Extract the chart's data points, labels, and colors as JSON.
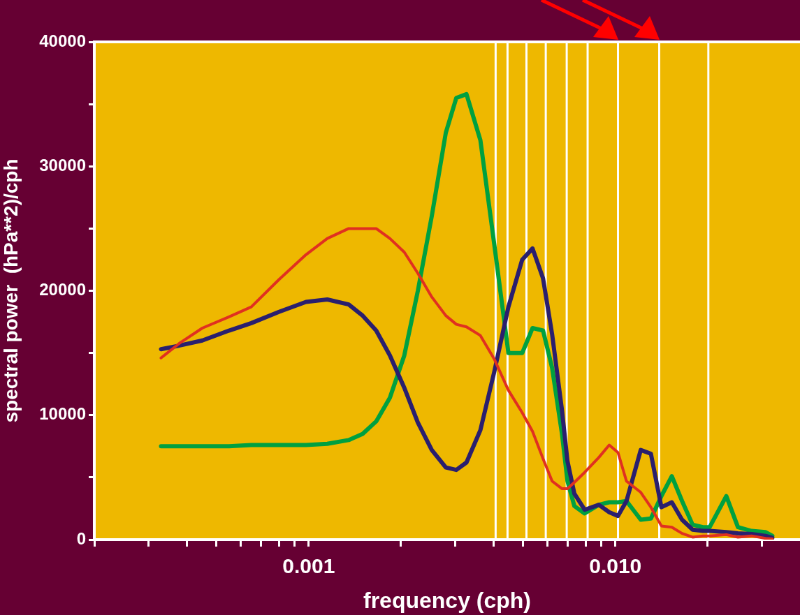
{
  "chart_data": {
    "type": "line",
    "xlabel": "frequency (cph)",
    "ylabel": "spectral power  (hPa**2)/cph",
    "log": "x",
    "x": [
      0.00033,
      0.00038,
      0.00045,
      0.00055,
      0.00065,
      0.0008,
      0.00098,
      0.00115,
      0.00135,
      0.0015,
      0.00166,
      0.00184,
      0.00205,
      0.00227,
      0.00252,
      0.0028,
      0.00303,
      0.00327,
      0.00363,
      0.00403,
      0.00448,
      0.00497,
      0.00537,
      0.00581,
      0.00622,
      0.00669,
      0.00698,
      0.00735,
      0.00794,
      0.00883,
      0.00955,
      0.0102,
      0.01087,
      0.0121,
      0.01306,
      0.01413,
      0.01528,
      0.0165,
      0.01786,
      0.0193,
      0.0203,
      0.023,
      0.0251,
      0.0278,
      0.0309,
      0.0325
    ],
    "series": [
      {
        "color": "#e03020",
        "values": [
          14600,
          15800,
          17000,
          17900,
          18700,
          20900,
          22900,
          24200,
          25000,
          25000,
          25000,
          24200,
          23100,
          21400,
          19500,
          18000,
          17300,
          17100,
          16400,
          14500,
          12000,
          10200,
          8700,
          6500,
          4700,
          4100,
          4100,
          4600,
          5400,
          6600,
          7600,
          7000,
          4700,
          3800,
          2600,
          1100,
          1000,
          500,
          200,
          300,
          300,
          400,
          200,
          300,
          100,
          50
        ]
      },
      {
        "color": "#2a1f6e",
        "values": [
          15300,
          15600,
          16000,
          16800,
          17400,
          18300,
          19100,
          19300,
          18900,
          18000,
          16800,
          14800,
          12200,
          9400,
          7200,
          5800,
          5600,
          6200,
          8800,
          13500,
          18700,
          22500,
          23400,
          21000,
          16500,
          10500,
          6300,
          3700,
          2400,
          2800,
          2200,
          1900,
          3100,
          7200,
          6900,
          2600,
          3000,
          1600,
          800,
          700,
          700,
          600,
          500,
          450,
          300,
          150
        ]
      },
      {
        "color": "#00a040",
        "values": [
          7500,
          7500,
          7500,
          7500,
          7600,
          7600,
          7600,
          7700,
          8000,
          8500,
          9500,
          11400,
          14800,
          20000,
          26000,
          32700,
          35500,
          35800,
          32100,
          23700,
          15000,
          15000,
          17000,
          16800,
          13800,
          8600,
          4700,
          2700,
          2100,
          2800,
          3000,
          3000,
          3100,
          1600,
          1700,
          3500,
          5100,
          3100,
          1200,
          1000,
          1000,
          3500,
          1000,
          700,
          600,
          300
        ]
      }
    ],
    "xlim": [
      0.0002,
      0.04
    ],
    "xticks": [
      {
        "value": 0.0002,
        "label": null
      },
      {
        "value": 0.0003,
        "label": null
      },
      {
        "value": 0.0004,
        "label": null
      },
      {
        "value": 0.0005,
        "label": null
      },
      {
        "value": 0.0006,
        "label": null
      },
      {
        "value": 0.0007,
        "label": null
      },
      {
        "value": 0.0008,
        "label": null
      },
      {
        "value": 0.0009,
        "label": null
      },
      {
        "value": 0.001,
        "label": "0.001"
      },
      {
        "value": 0.002,
        "label": null
      },
      {
        "value": 0.003,
        "label": null
      },
      {
        "value": 0.004,
        "label": null
      },
      {
        "value": 0.005,
        "label": null
      },
      {
        "value": 0.006,
        "label": null
      },
      {
        "value": 0.007,
        "label": null
      },
      {
        "value": 0.008,
        "label": null
      },
      {
        "value": 0.009,
        "label": null
      },
      {
        "value": 0.01,
        "label": "0.010"
      },
      {
        "value": 0.02,
        "label": null
      },
      {
        "value": 0.03,
        "label": null
      }
    ],
    "ylim": [
      0,
      40000
    ],
    "yticks": [
      0,
      {
        "value": 5000,
        "label": null
      },
      10000,
      {
        "value": 15000,
        "label": null
      },
      20000,
      {
        "value": 25000,
        "label": null
      },
      30000,
      {
        "value": 35000,
        "label": null
      },
      40000
    ],
    "ref_lines": [
      {
        "axis": "x",
        "value": 0.00407,
        "color": "#ffffff"
      },
      {
        "axis": "x",
        "value": 0.00445,
        "color": "#ffffff"
      },
      {
        "axis": "x",
        "value": 0.00513,
        "color": "#ffffff"
      },
      {
        "axis": "x",
        "value": 0.00593,
        "color": "#ffffff"
      },
      {
        "axis": "x",
        "value": 0.00694,
        "color": "#ffffff"
      },
      {
        "axis": "x",
        "value": 0.00812,
        "color": "#ffffff"
      },
      {
        "axis": "x",
        "value": 0.0102,
        "color": "#ffffff"
      },
      {
        "axis": "x",
        "value": 0.0139,
        "color": "#ffffff"
      },
      {
        "axis": "x",
        "value": 0.0201,
        "color": "#ffffff"
      }
    ],
    "grid": false,
    "legend": false,
    "marker": "none",
    "line_style": "solid"
  }
}
